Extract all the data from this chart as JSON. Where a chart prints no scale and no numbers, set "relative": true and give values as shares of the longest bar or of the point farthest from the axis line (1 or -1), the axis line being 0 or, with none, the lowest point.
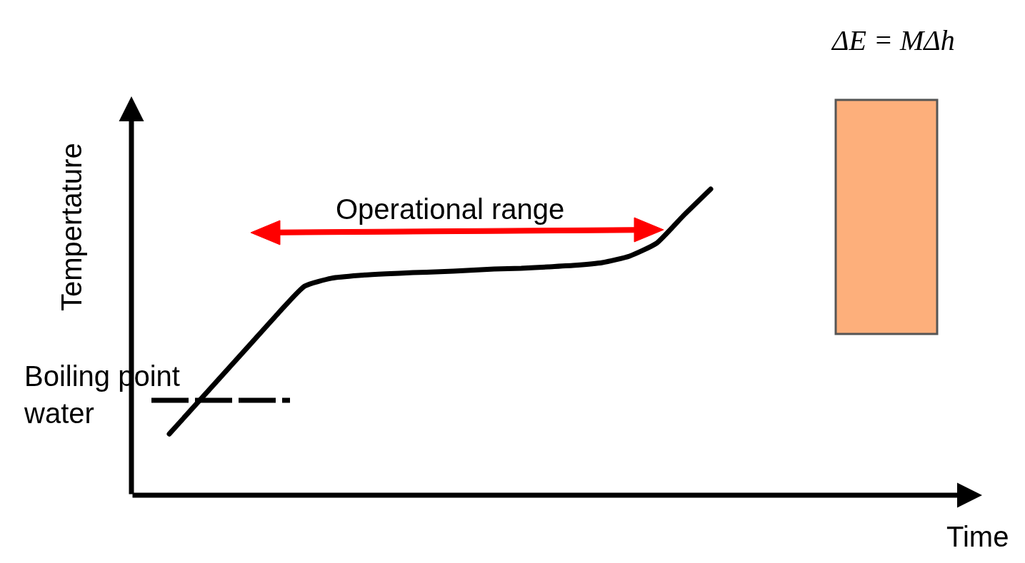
{
  "chart_data": {
    "type": "line",
    "relative": true,
    "ylabel": "Tempertature",
    "categories": [
      null,
      null,
      null,
      null,
      null,
      null,
      null,
      null,
      null,
      null,
      null,
      null,
      null,
      null,
      null,
      null,
      null,
      null,
      null,
      null,
      null
    ],
    "series": [
      {
        "color": "#000000",
        "values": [
          0.2,
          0.298,
          0.396,
          0.494,
          0.592,
          0.683,
          0.709,
          0.718,
          0.723,
          0.727,
          0.73,
          0.734,
          0.739,
          0.741,
          0.746,
          0.751,
          0.76,
          0.781,
          0.823,
          0.914,
          1
        ]
      }
    ],
    "ref_lines": [
      {
        "axis": "y",
        "value": 0.31,
        "label": "Boiling point water",
        "color": "#000000",
        "line_style": "dashed"
      }
    ],
    "annotations": [
      "Operational range",
      "ΔE = MΔh",
      "Time"
    ],
    "marker": "none",
    "line_style": "solid"
  }
}
